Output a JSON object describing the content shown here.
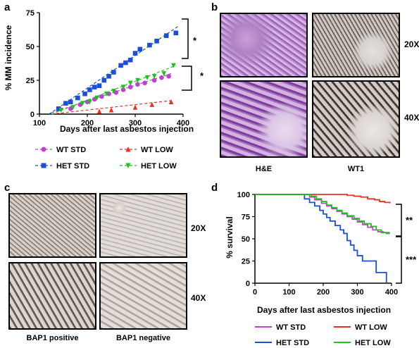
{
  "panels": {
    "a": {
      "letter": "a"
    },
    "b": {
      "letter": "b",
      "mag_top": "20X",
      "mag_bottom": "40X",
      "stain_left": "H&E",
      "stain_right": "WT1"
    },
    "c": {
      "letter": "c",
      "mag_top": "20X",
      "mag_bottom": "40X",
      "stain_left": "BAP1 positive",
      "stain_right": "BAP1 negative"
    },
    "d": {
      "letter": "d"
    }
  },
  "colors": {
    "wt_std": "#c040d0",
    "het_std": "#1a4fd6",
    "wt_low": "#e8321e",
    "het_low": "#20c020"
  },
  "chart_data": [
    {
      "type": "scatter",
      "panel": "a",
      "xlabel": "Days after last asbestos injection",
      "ylabel": "% MM incidence",
      "xlim": [
        100,
        400
      ],
      "ylim": [
        0,
        75
      ],
      "xticks": [
        100,
        200,
        300,
        400
      ],
      "yticks": [
        0,
        25,
        50,
        75
      ],
      "significance": [
        "*",
        "*"
      ],
      "series": [
        {
          "name": "WT STD",
          "marker": "circle",
          "x": [
            165,
            185,
            200,
            215,
            230,
            245,
            260,
            275,
            290,
            305,
            320,
            340,
            355,
            370
          ],
          "y": [
            4,
            7,
            9,
            11,
            13,
            15,
            16,
            18,
            20,
            22,
            23,
            25,
            27,
            28
          ],
          "trend": [
            [
              125,
              1
            ],
            [
              375,
              30
            ]
          ]
        },
        {
          "name": "HET STD",
          "marker": "square",
          "x": [
            140,
            155,
            165,
            180,
            195,
            205,
            215,
            225,
            235,
            245,
            255,
            270,
            280,
            290,
            300,
            310,
            330,
            345,
            365,
            385
          ],
          "y": [
            4,
            8,
            9,
            12,
            15,
            18,
            20,
            21,
            25,
            28,
            31,
            36,
            38,
            40,
            45,
            48,
            51,
            54,
            58,
            60
          ],
          "trend": [
            [
              120,
              0
            ],
            [
              390,
              65
            ]
          ]
        },
        {
          "name": "WT LOW",
          "marker": "triangle-up",
          "x": [
            225,
            250,
            300,
            335,
            375
          ],
          "y": [
            2,
            3,
            5,
            7,
            9
          ],
          "trend": [
            [
              125,
              0
            ],
            [
              375,
              10
            ]
          ]
        },
        {
          "name": "HET LOW",
          "marker": "triangle-down",
          "x": [
            145,
            170,
            190,
            205,
            220,
            240,
            255,
            275,
            290,
            305,
            325,
            340,
            360,
            380
          ],
          "y": [
            3,
            5,
            8,
            9,
            12,
            15,
            17,
            20,
            23,
            25,
            27,
            28,
            30,
            36
          ],
          "trend": [
            [
              125,
              0
            ],
            [
              385,
              36
            ]
          ]
        }
      ]
    },
    {
      "type": "line",
      "panel": "d",
      "step": true,
      "xlabel": "Days after last asbestos injection",
      "ylabel": "% survival",
      "xlim": [
        0,
        400
      ],
      "ylim": [
        0,
        100
      ],
      "xticks": [
        0,
        100,
        200,
        300,
        400
      ],
      "yticks": [
        0,
        25,
        50,
        75,
        100
      ],
      "significance": [
        "**",
        "***"
      ],
      "series": [
        {
          "name": "WT STD",
          "x": [
            0,
            145,
            160,
            175,
            195,
            210,
            225,
            240,
            255,
            270,
            285,
            300,
            315,
            330,
            345,
            360,
            375,
            395
          ],
          "y": [
            100,
            100,
            97,
            94,
            90,
            87,
            84,
            81,
            78,
            75,
            72,
            69,
            66,
            63,
            60,
            58,
            57,
            57
          ]
        },
        {
          "name": "HET STD",
          "x": [
            0,
            130,
            145,
            160,
            175,
            190,
            200,
            210,
            220,
            235,
            250,
            260,
            270,
            280,
            290,
            300,
            315,
            330,
            355,
            385,
            385
          ],
          "y": [
            100,
            100,
            95,
            91,
            87,
            82,
            78,
            74,
            70,
            65,
            60,
            56,
            48,
            43,
            37,
            31,
            25,
            25,
            12,
            12,
            0
          ]
        },
        {
          "name": "WT LOW",
          "x": [
            0,
            250,
            270,
            290,
            310,
            330,
            350,
            365,
            380,
            395
          ],
          "y": [
            100,
            100,
            99,
            98,
            97,
            95,
            94,
            92,
            91,
            90
          ]
        },
        {
          "name": "HET LOW",
          "x": [
            0,
            150,
            165,
            180,
            195,
            210,
            225,
            240,
            255,
            270,
            290,
            305,
            320,
            340,
            355,
            370,
            385,
            395
          ],
          "y": [
            100,
            100,
            98,
            95,
            92,
            88,
            85,
            82,
            79,
            76,
            73,
            70,
            67,
            64,
            60,
            57,
            56,
            56
          ]
        }
      ]
    }
  ]
}
